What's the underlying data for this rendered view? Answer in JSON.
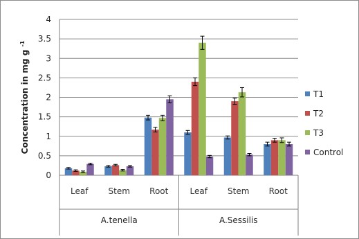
{
  "chart_data": {
    "type": "bar",
    "ylabel": "Concentration in mg g",
    "ylabel_sup": "-1",
    "ylim": [
      0,
      4
    ],
    "yticks": [
      0,
      0.5,
      1,
      1.5,
      2,
      2.5,
      3,
      3.5,
      4
    ],
    "grid": true,
    "legend_position": "right",
    "groups": [
      {
        "label": "A.tenella",
        "categories": [
          "Leaf",
          "Stem",
          "Root"
        ]
      },
      {
        "label": "A.Sessilis",
        "categories": [
          "Leaf",
          "Stem",
          "Root"
        ]
      }
    ],
    "categories": [
      "Leaf",
      "Stem",
      "Root",
      "Leaf",
      "Stem",
      "Root"
    ],
    "series": [
      {
        "name": "T1",
        "color": "#4F81BD",
        "values": [
          0.18,
          0.23,
          1.48,
          1.1,
          0.97,
          0.8
        ],
        "errors": [
          0.02,
          0.02,
          0.06,
          0.05,
          0.04,
          0.05
        ]
      },
      {
        "name": "T2",
        "color": "#C0504D",
        "values": [
          0.12,
          0.26,
          1.17,
          2.4,
          1.9,
          0.9
        ],
        "errors": [
          0.02,
          0.02,
          0.06,
          0.1,
          0.08,
          0.05
        ]
      },
      {
        "name": "T3",
        "color": "#9BBB59",
        "values": [
          0.09,
          0.13,
          1.47,
          3.4,
          2.13,
          0.9
        ],
        "errors": [
          0.02,
          0.02,
          0.07,
          0.17,
          0.12,
          0.06
        ]
      },
      {
        "name": "Control",
        "color": "#8064A2",
        "values": [
          0.29,
          0.23,
          1.95,
          0.48,
          0.53,
          0.8
        ],
        "errors": [
          0.02,
          0.02,
          0.09,
          0.03,
          0.03,
          0.05
        ]
      }
    ]
  }
}
